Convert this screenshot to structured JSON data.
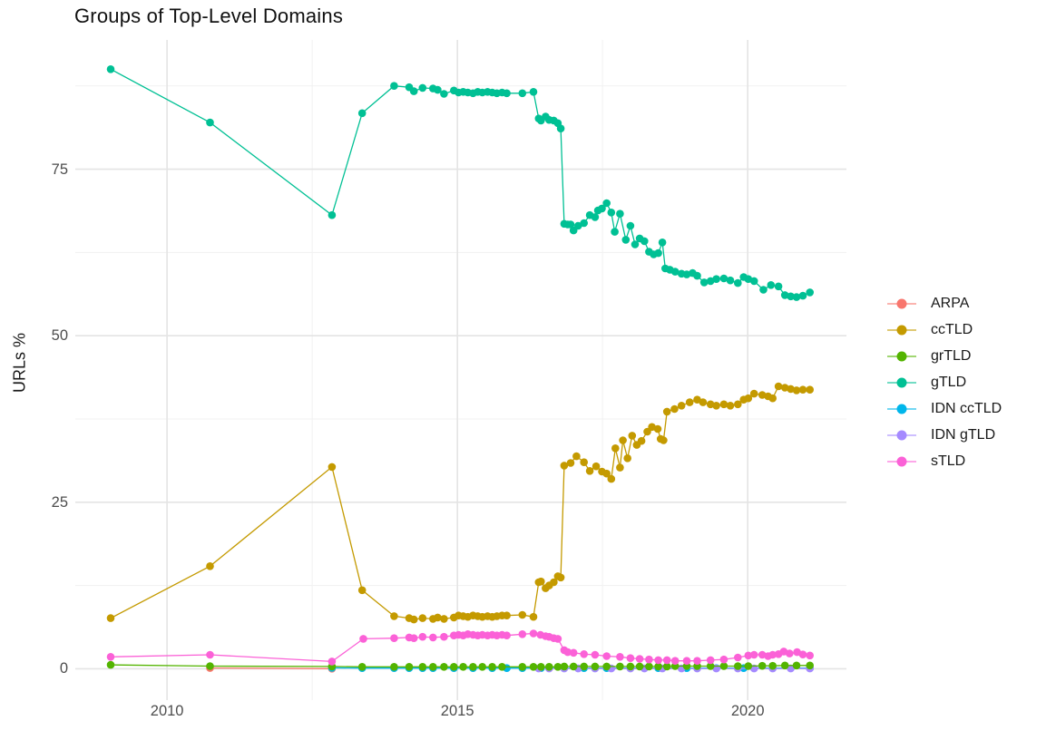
{
  "title": "Groups of Top-Level Domains",
  "chart_data": {
    "type": "line",
    "title": "Groups of Top-Level Domains",
    "xlabel": "",
    "ylabel": "URLs %",
    "legend_position": "right",
    "grid": true,
    "xlim": [
      2008.42,
      2021.7
    ],
    "ylim": [
      -4.7,
      94.4
    ],
    "x_ticks": [
      2010,
      2015,
      2020
    ],
    "x_minor": [
      2012.5,
      2017.5
    ],
    "y_ticks": [
      0,
      25,
      50,
      75
    ],
    "y_minor": [
      12.5,
      37.5,
      62.5,
      87.5
    ],
    "series": [
      {
        "name": "ARPA",
        "color": "#F8766D",
        "points": [
          [
            2010.74,
            0.12
          ],
          [
            2012.84,
            0.03
          ]
        ]
      },
      {
        "name": "ccTLD",
        "color": "#C49A00",
        "points": [
          [
            2009.03,
            7.6
          ],
          [
            2010.74,
            15.4
          ],
          [
            2012.84,
            30.3
          ],
          [
            2013.36,
            11.8
          ],
          [
            2013.91,
            7.9
          ],
          [
            2014.17,
            7.6
          ],
          [
            2014.25,
            7.4
          ],
          [
            2014.4,
            7.6
          ],
          [
            2014.58,
            7.5
          ],
          [
            2014.66,
            7.7
          ],
          [
            2014.77,
            7.5
          ],
          [
            2014.94,
            7.7
          ],
          [
            2015.02,
            8
          ],
          [
            2015.1,
            7.9
          ],
          [
            2015.18,
            7.8
          ],
          [
            2015.27,
            8
          ],
          [
            2015.35,
            7.9
          ],
          [
            2015.43,
            7.8
          ],
          [
            2015.52,
            7.9
          ],
          [
            2015.6,
            7.8
          ],
          [
            2015.68,
            7.9
          ],
          [
            2015.77,
            8
          ],
          [
            2015.85,
            8
          ],
          [
            2016.12,
            8.1
          ],
          [
            2016.31,
            7.8
          ],
          [
            2016.4,
            13
          ],
          [
            2016.44,
            13.1
          ],
          [
            2016.52,
            12.1
          ],
          [
            2016.58,
            12.5
          ],
          [
            2016.66,
            13
          ],
          [
            2016.73,
            13.9
          ],
          [
            2016.78,
            13.7
          ],
          [
            2016.84,
            30.5
          ],
          [
            2016.95,
            30.9
          ],
          [
            2017.05,
            31.9
          ],
          [
            2017.18,
            31
          ],
          [
            2017.28,
            29.7
          ],
          [
            2017.39,
            30.4
          ],
          [
            2017.49,
            29.6
          ],
          [
            2017.57,
            29.3
          ],
          [
            2017.65,
            28.5
          ],
          [
            2017.72,
            33.1
          ],
          [
            2017.8,
            30.2
          ],
          [
            2017.85,
            34.3
          ],
          [
            2017.93,
            31.6
          ],
          [
            2018.01,
            35
          ],
          [
            2018.09,
            33.6
          ],
          [
            2018.17,
            34.2
          ],
          [
            2018.27,
            35.6
          ],
          [
            2018.35,
            36.3
          ],
          [
            2018.45,
            36
          ],
          [
            2018.5,
            34.5
          ],
          [
            2018.55,
            34.3
          ],
          [
            2018.61,
            38.6
          ],
          [
            2018.74,
            39
          ],
          [
            2018.86,
            39.5
          ],
          [
            2019,
            40
          ],
          [
            2019.13,
            40.4
          ],
          [
            2019.23,
            40
          ],
          [
            2019.36,
            39.7
          ],
          [
            2019.46,
            39.5
          ],
          [
            2019.59,
            39.7
          ],
          [
            2019.7,
            39.5
          ],
          [
            2019.83,
            39.7
          ],
          [
            2019.93,
            40.4
          ],
          [
            2020.01,
            40.6
          ],
          [
            2020.11,
            41.3
          ],
          [
            2020.25,
            41.1
          ],
          [
            2020.35,
            40.9
          ],
          [
            2020.43,
            40.6
          ],
          [
            2020.53,
            42.4
          ],
          [
            2020.64,
            42.2
          ],
          [
            2020.74,
            42
          ],
          [
            2020.84,
            41.8
          ],
          [
            2020.95,
            41.9
          ],
          [
            2021.07,
            41.9
          ]
        ]
      },
      {
        "name": "grTLD",
        "color": "#53B400",
        "points": [
          [
            2009.03,
            0.6
          ],
          [
            2010.74,
            0.4
          ],
          [
            2012.84,
            0.35
          ],
          [
            2013.36,
            0.3
          ],
          [
            2013.91,
            0.3
          ],
          [
            2014.17,
            0.3
          ],
          [
            2014.4,
            0.3
          ],
          [
            2014.58,
            0.3
          ],
          [
            2014.77,
            0.3
          ],
          [
            2014.94,
            0.3
          ],
          [
            2015.1,
            0.3
          ],
          [
            2015.27,
            0.3
          ],
          [
            2015.43,
            0.3
          ],
          [
            2015.6,
            0.3
          ],
          [
            2015.77,
            0.3
          ],
          [
            2016.12,
            0.3
          ],
          [
            2016.31,
            0.3
          ],
          [
            2016.44,
            0.3
          ],
          [
            2016.58,
            0.3
          ],
          [
            2016.73,
            0.3
          ],
          [
            2016.84,
            0.35
          ],
          [
            2017,
            0.35
          ],
          [
            2017.18,
            0.35
          ],
          [
            2017.37,
            0.35
          ],
          [
            2017.57,
            0.35
          ],
          [
            2017.8,
            0.35
          ],
          [
            2017.98,
            0.35
          ],
          [
            2018.14,
            0.35
          ],
          [
            2018.3,
            0.35
          ],
          [
            2018.46,
            0.35
          ],
          [
            2018.61,
            0.35
          ],
          [
            2018.75,
            0.4
          ],
          [
            2018.95,
            0.4
          ],
          [
            2019.13,
            0.4
          ],
          [
            2019.36,
            0.4
          ],
          [
            2019.59,
            0.4
          ],
          [
            2019.83,
            0.4
          ],
          [
            2020.01,
            0.4
          ],
          [
            2020.25,
            0.45
          ],
          [
            2020.43,
            0.45
          ],
          [
            2020.64,
            0.5
          ],
          [
            2020.84,
            0.5
          ],
          [
            2021.07,
            0.5
          ]
        ]
      },
      {
        "name": "gTLD",
        "color": "#00C094",
        "points": [
          [
            2009.03,
            90
          ],
          [
            2010.74,
            82
          ],
          [
            2012.84,
            68.1
          ],
          [
            2013.36,
            83.4
          ],
          [
            2013.91,
            87.5
          ],
          [
            2014.17,
            87.3
          ],
          [
            2014.25,
            86.7
          ],
          [
            2014.4,
            87.2
          ],
          [
            2014.58,
            87.1
          ],
          [
            2014.66,
            86.9
          ],
          [
            2014.77,
            86.3
          ],
          [
            2014.94,
            86.8
          ],
          [
            2015.02,
            86.5
          ],
          [
            2015.1,
            86.6
          ],
          [
            2015.18,
            86.5
          ],
          [
            2015.27,
            86.4
          ],
          [
            2015.35,
            86.6
          ],
          [
            2015.43,
            86.5
          ],
          [
            2015.52,
            86.6
          ],
          [
            2015.6,
            86.5
          ],
          [
            2015.68,
            86.4
          ],
          [
            2015.77,
            86.5
          ],
          [
            2015.85,
            86.4
          ],
          [
            2016.12,
            86.4
          ],
          [
            2016.31,
            86.6
          ],
          [
            2016.4,
            82.6
          ],
          [
            2016.44,
            82.3
          ],
          [
            2016.52,
            82.9
          ],
          [
            2016.58,
            82.4
          ],
          [
            2016.66,
            82.3
          ],
          [
            2016.73,
            81.9
          ],
          [
            2016.78,
            81.1
          ],
          [
            2016.84,
            66.8
          ],
          [
            2016.9,
            66.7
          ],
          [
            2016.95,
            66.7
          ],
          [
            2017,
            65.8
          ],
          [
            2017.08,
            66.5
          ],
          [
            2017.18,
            66.9
          ],
          [
            2017.28,
            68.1
          ],
          [
            2017.37,
            67.8
          ],
          [
            2017.42,
            68.8
          ],
          [
            2017.49,
            69.1
          ],
          [
            2017.57,
            69.9
          ],
          [
            2017.65,
            68.5
          ],
          [
            2017.71,
            65.6
          ],
          [
            2017.8,
            68.3
          ],
          [
            2017.9,
            64.4
          ],
          [
            2017.98,
            66.5
          ],
          [
            2018.06,
            63.7
          ],
          [
            2018.14,
            64.6
          ],
          [
            2018.22,
            64.2
          ],
          [
            2018.3,
            62.6
          ],
          [
            2018.38,
            62.2
          ],
          [
            2018.46,
            62.4
          ],
          [
            2018.53,
            64
          ],
          [
            2018.58,
            60.1
          ],
          [
            2018.66,
            59.9
          ],
          [
            2018.75,
            59.6
          ],
          [
            2018.86,
            59.3
          ],
          [
            2018.95,
            59.2
          ],
          [
            2019.05,
            59.4
          ],
          [
            2019.13,
            59
          ],
          [
            2019.25,
            58
          ],
          [
            2019.36,
            58.2
          ],
          [
            2019.46,
            58.5
          ],
          [
            2019.59,
            58.6
          ],
          [
            2019.7,
            58.3
          ],
          [
            2019.83,
            57.9
          ],
          [
            2019.93,
            58.8
          ],
          [
            2020.01,
            58.5
          ],
          [
            2020.11,
            58.2
          ],
          [
            2020.27,
            56.9
          ],
          [
            2020.4,
            57.6
          ],
          [
            2020.53,
            57.4
          ],
          [
            2020.64,
            56.1
          ],
          [
            2020.74,
            55.9
          ],
          [
            2020.84,
            55.8
          ],
          [
            2020.95,
            56
          ],
          [
            2021.07,
            56.5
          ]
        ]
      },
      {
        "name": "IDN ccTLD",
        "color": "#00B6EB",
        "points": [
          [
            2012.84,
            0.15
          ],
          [
            2013.36,
            0.1
          ],
          [
            2013.91,
            0.1
          ],
          [
            2014.17,
            0.1
          ],
          [
            2014.4,
            0.1
          ],
          [
            2014.58,
            0.1
          ],
          [
            2014.94,
            0.1
          ],
          [
            2015.27,
            0.1
          ],
          [
            2015.6,
            0.1
          ],
          [
            2015.85,
            0.1
          ],
          [
            2016.12,
            0.1
          ],
          [
            2016.44,
            0.1
          ],
          [
            2016.84,
            0.1
          ],
          [
            2017.18,
            0.1
          ],
          [
            2017.57,
            0.1
          ],
          [
            2017.98,
            0.1
          ],
          [
            2018.46,
            0.1
          ],
          [
            2018.95,
            0.1
          ],
          [
            2019.46,
            0.1
          ],
          [
            2019.93,
            0.1
          ],
          [
            2020.43,
            0.1
          ],
          [
            2021.07,
            0.1
          ]
        ]
      },
      {
        "name": "IDN gTLD",
        "color": "#A58AFF",
        "points": [
          [
            2016.4,
            0.05
          ],
          [
            2016.58,
            0.05
          ],
          [
            2016.84,
            0.05
          ],
          [
            2017.08,
            0.05
          ],
          [
            2017.37,
            0.05
          ],
          [
            2017.65,
            0.05
          ],
          [
            2017.98,
            0.05
          ],
          [
            2018.22,
            0.05
          ],
          [
            2018.53,
            0.05
          ],
          [
            2018.86,
            0.05
          ],
          [
            2019.13,
            0.05
          ],
          [
            2019.46,
            0.05
          ],
          [
            2019.83,
            0.05
          ],
          [
            2020.11,
            0.05
          ],
          [
            2020.43,
            0.05
          ],
          [
            2020.74,
            0.05
          ],
          [
            2021.07,
            0.05
          ]
        ]
      },
      {
        "name": "sTLD",
        "color": "#FB61D7",
        "points": [
          [
            2009.03,
            1.8
          ],
          [
            2010.74,
            2.1
          ],
          [
            2012.84,
            1.1
          ],
          [
            2013.38,
            4.5
          ],
          [
            2013.91,
            4.6
          ],
          [
            2014.17,
            4.7
          ],
          [
            2014.25,
            4.6
          ],
          [
            2014.4,
            4.8
          ],
          [
            2014.58,
            4.7
          ],
          [
            2014.77,
            4.8
          ],
          [
            2014.94,
            5
          ],
          [
            2015.02,
            5.1
          ],
          [
            2015.1,
            5
          ],
          [
            2015.18,
            5.2
          ],
          [
            2015.27,
            5.1
          ],
          [
            2015.35,
            5
          ],
          [
            2015.43,
            5.1
          ],
          [
            2015.52,
            5
          ],
          [
            2015.6,
            5.1
          ],
          [
            2015.68,
            5
          ],
          [
            2015.77,
            5.1
          ],
          [
            2015.85,
            5
          ],
          [
            2016.12,
            5.2
          ],
          [
            2016.31,
            5.3
          ],
          [
            2016.43,
            5.1
          ],
          [
            2016.52,
            4.9
          ],
          [
            2016.58,
            4.8
          ],
          [
            2016.66,
            4.6
          ],
          [
            2016.73,
            4.5
          ],
          [
            2016.84,
            2.8
          ],
          [
            2016.9,
            2.5
          ],
          [
            2017,
            2.4
          ],
          [
            2017.18,
            2.2
          ],
          [
            2017.37,
            2.1
          ],
          [
            2017.57,
            1.9
          ],
          [
            2017.8,
            1.8
          ],
          [
            2017.98,
            1.6
          ],
          [
            2018.14,
            1.5
          ],
          [
            2018.3,
            1.4
          ],
          [
            2018.46,
            1.3
          ],
          [
            2018.61,
            1.3
          ],
          [
            2018.75,
            1.2
          ],
          [
            2018.95,
            1.2
          ],
          [
            2019.13,
            1.2
          ],
          [
            2019.36,
            1.3
          ],
          [
            2019.59,
            1.4
          ],
          [
            2019.83,
            1.7
          ],
          [
            2020.01,
            2
          ],
          [
            2020.11,
            2.1
          ],
          [
            2020.25,
            2.1
          ],
          [
            2020.35,
            1.9
          ],
          [
            2020.43,
            2.1
          ],
          [
            2020.53,
            2.2
          ],
          [
            2020.62,
            2.6
          ],
          [
            2020.72,
            2.3
          ],
          [
            2020.85,
            2.5
          ],
          [
            2020.95,
            2.15
          ],
          [
            2021.07,
            2
          ]
        ]
      }
    ],
    "grid_colors": {
      "major": "#E4E4E4",
      "minor": "#F1F1F1"
    }
  }
}
